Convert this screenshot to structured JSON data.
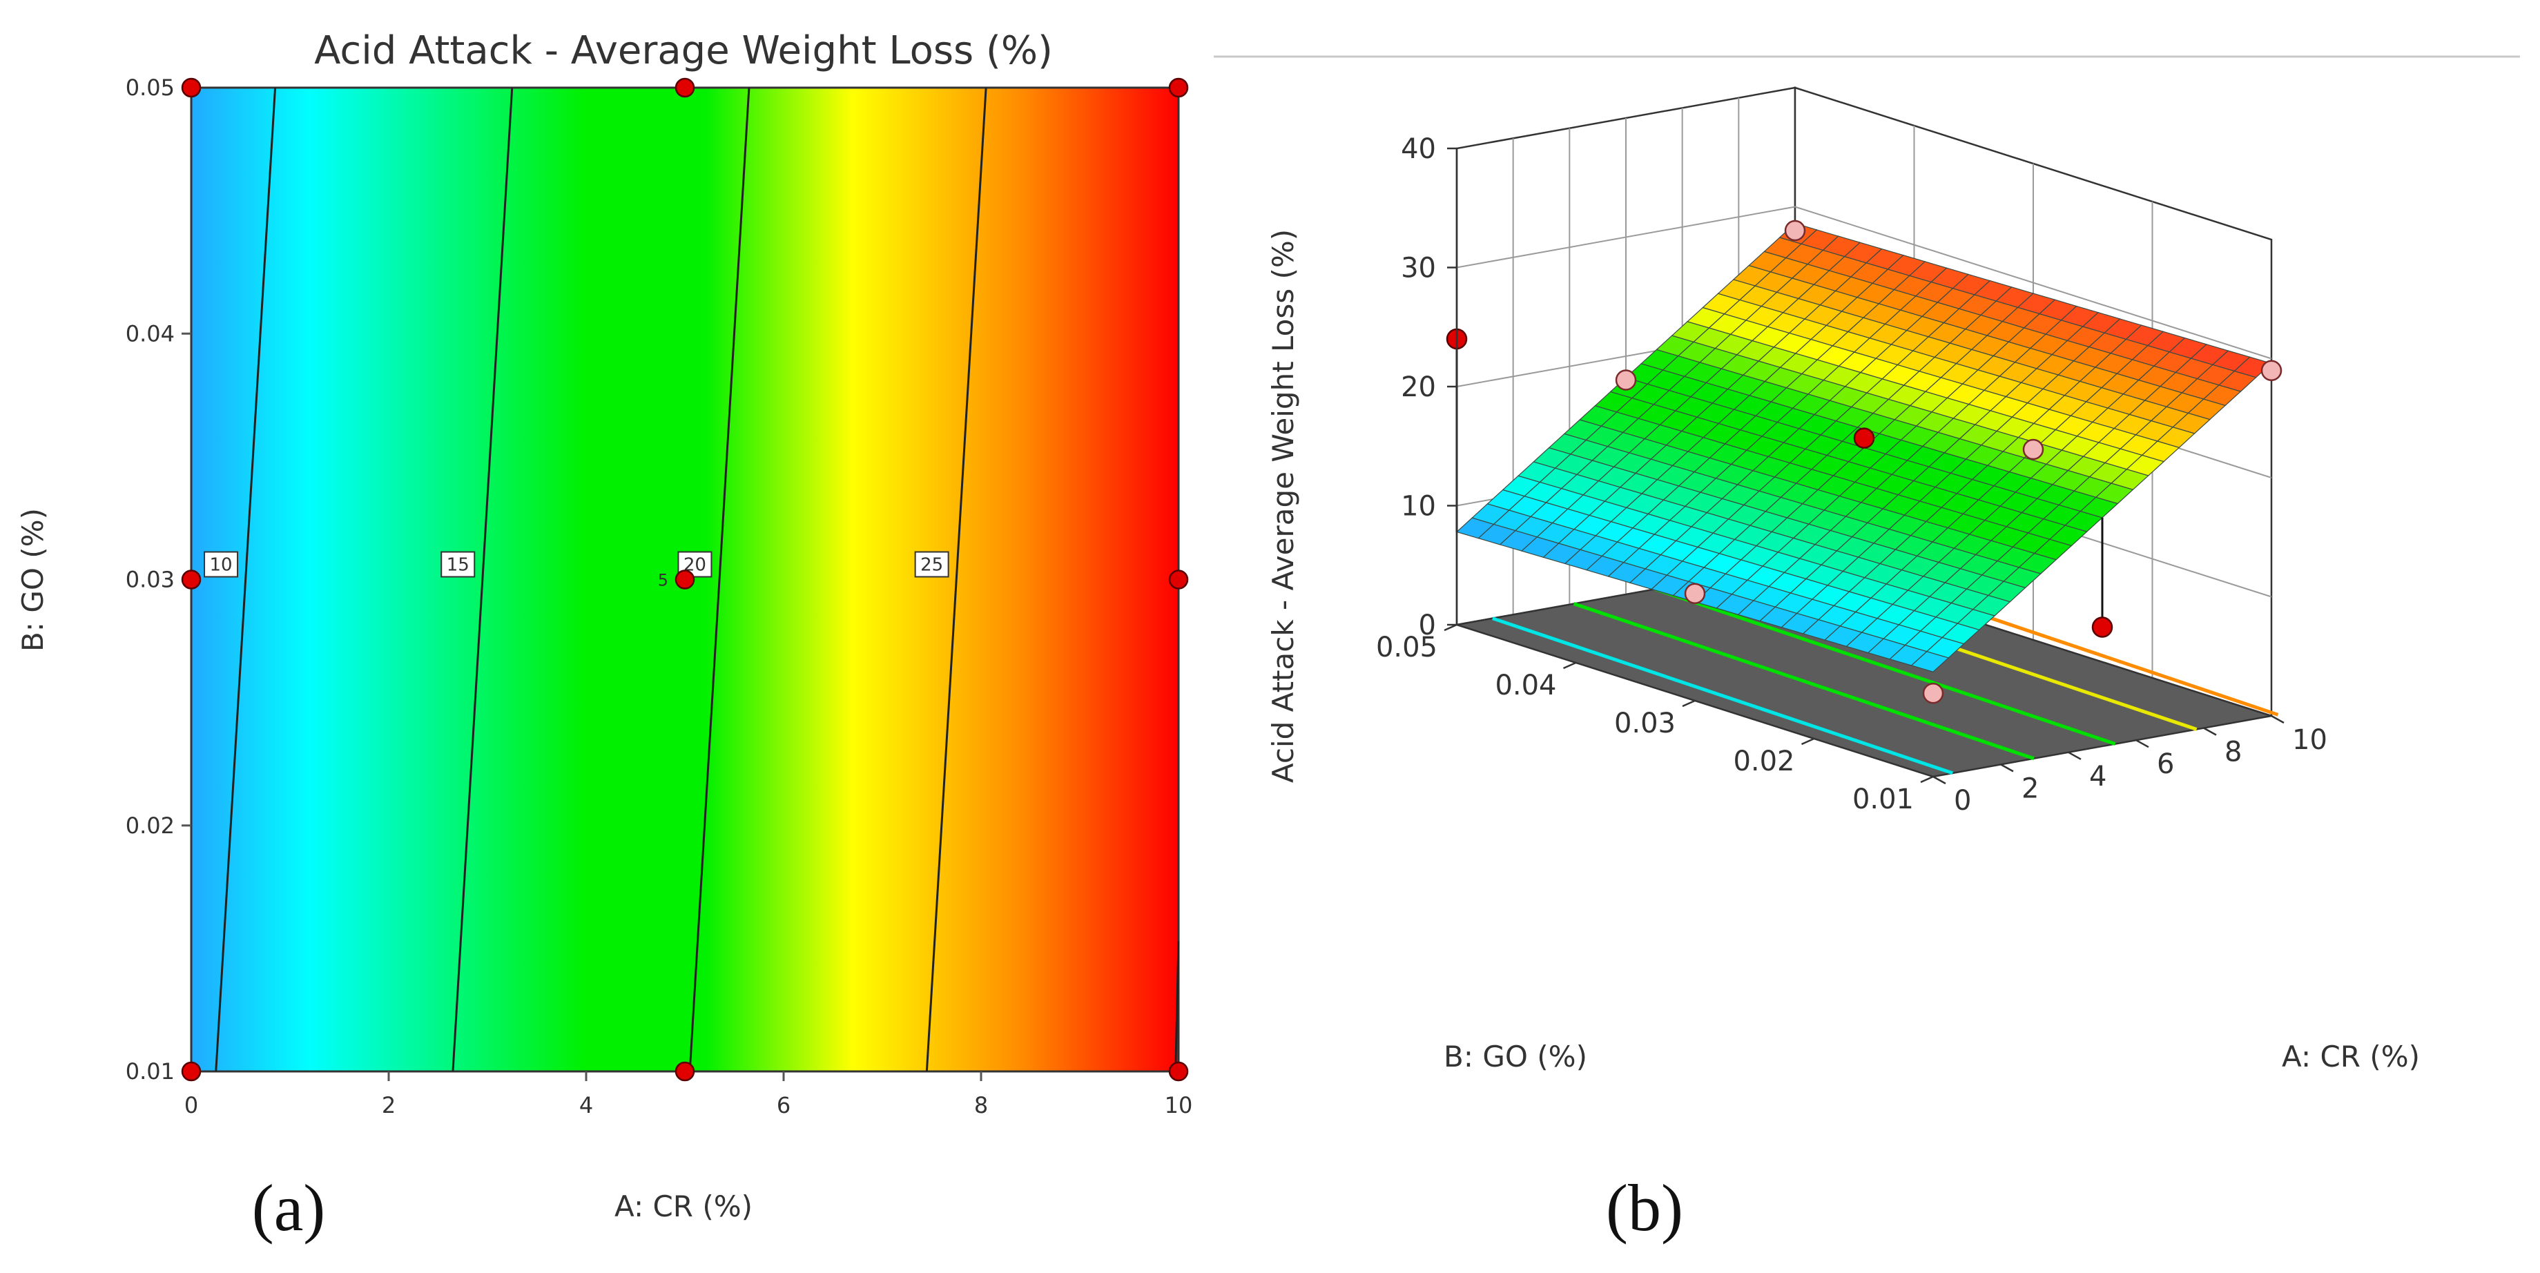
{
  "panel_labels": [
    "(a)",
    "(b)"
  ],
  "colors": {
    "scale": [
      "#22aaff",
      "#00ffff",
      "#00f000",
      "#00f000",
      "#ffff00",
      "#ff8c00",
      "#ff0000"
    ],
    "marker": "#e00000",
    "marker_light": "#f2b6b6",
    "floor": "#5c5c5c"
  },
  "chart_data": [
    {
      "type": "contour",
      "title": "Acid Attack - Average Weight Loss (%)",
      "xlabel": "A: CR (%)",
      "ylabel": "B: GO (%)",
      "xlim": [
        0,
        10
      ],
      "ylim": [
        0.01,
        0.05
      ],
      "xticks": [
        "0",
        "2",
        "4",
        "6",
        "8",
        "10"
      ],
      "yticks": [
        "0.01",
        "0.02",
        "0.03",
        "0.04",
        "0.05"
      ],
      "color_range": [
        8,
        30
      ],
      "contours": [
        {
          "level": 10,
          "label": "10",
          "cr_at_go_min": 0.25,
          "cr_at_go_max": 0.85
        },
        {
          "level": 15,
          "label": "15",
          "cr_at_go_min": 2.65,
          "cr_at_go_max": 3.25
        },
        {
          "level": 20,
          "label": "20",
          "cr_at_go_min": 5.05,
          "cr_at_go_max": 5.65
        },
        {
          "level": 25,
          "label": "25",
          "cr_at_go_min": 7.45,
          "cr_at_go_max": 8.05
        }
      ],
      "design_points": [
        {
          "cr": 0,
          "go": 0.01
        },
        {
          "cr": 0,
          "go": 0.03
        },
        {
          "cr": 0,
          "go": 0.05
        },
        {
          "cr": 5,
          "go": 0.01
        },
        {
          "cr": 5,
          "go": 0.03,
          "count_label": "5"
        },
        {
          "cr": 5,
          "go": 0.05
        },
        {
          "cr": 10,
          "go": 0.01
        },
        {
          "cr": 10,
          "go": 0.03
        },
        {
          "cr": 10,
          "go": 0.05
        }
      ]
    },
    {
      "type": "surface3d",
      "zlabel": "Acid Attack - Average Weight Loss (%)",
      "xlabel": "A: CR (%)",
      "ylabel": "B: GO (%)",
      "xlim": [
        0,
        10
      ],
      "ylim": [
        0.01,
        0.05
      ],
      "zlim": [
        0,
        40
      ],
      "xticks": [
        "0",
        "2",
        "4",
        "6",
        "8",
        "10"
      ],
      "yticks": [
        "0.01",
        "0.02",
        "0.03",
        "0.04",
        "0.05"
      ],
      "zticks": [
        "0",
        "10",
        "20",
        "30",
        "40"
      ],
      "surface": {
        "z_at_min": 8.8,
        "z_per_cr": 2.08,
        "z_per_go": -25
      },
      "floor_contours": [
        {
          "level": 10,
          "color": "#00e5e5"
        },
        {
          "level": 15,
          "color": "#00e000"
        },
        {
          "level": 20,
          "color": "#00e000"
        },
        {
          "level": 25,
          "color": "#e8e800"
        },
        {
          "level": 30,
          "color": "#ff8c00"
        }
      ],
      "design_points": [
        {
          "cr": 0,
          "go": 0.05,
          "z": 24,
          "above": true
        },
        {
          "cr": 0,
          "go": 0.03,
          "z": 9,
          "above": false
        },
        {
          "cr": 0,
          "go": 0.01,
          "z": 7,
          "above": false
        },
        {
          "cr": 5,
          "go": 0.03,
          "z": 19.5,
          "above": true
        },
        {
          "cr": 5,
          "go": 0.01,
          "z": 10,
          "above": true
        },
        {
          "cr": 5,
          "go": 0.05,
          "z": 18,
          "above": false
        },
        {
          "cr": 10,
          "go": 0.05,
          "z": 28,
          "above": false
        },
        {
          "cr": 10,
          "go": 0.01,
          "z": 29,
          "above": false
        },
        {
          "cr": 10,
          "go": 0.03,
          "z": 16,
          "above": false
        }
      ]
    }
  ]
}
